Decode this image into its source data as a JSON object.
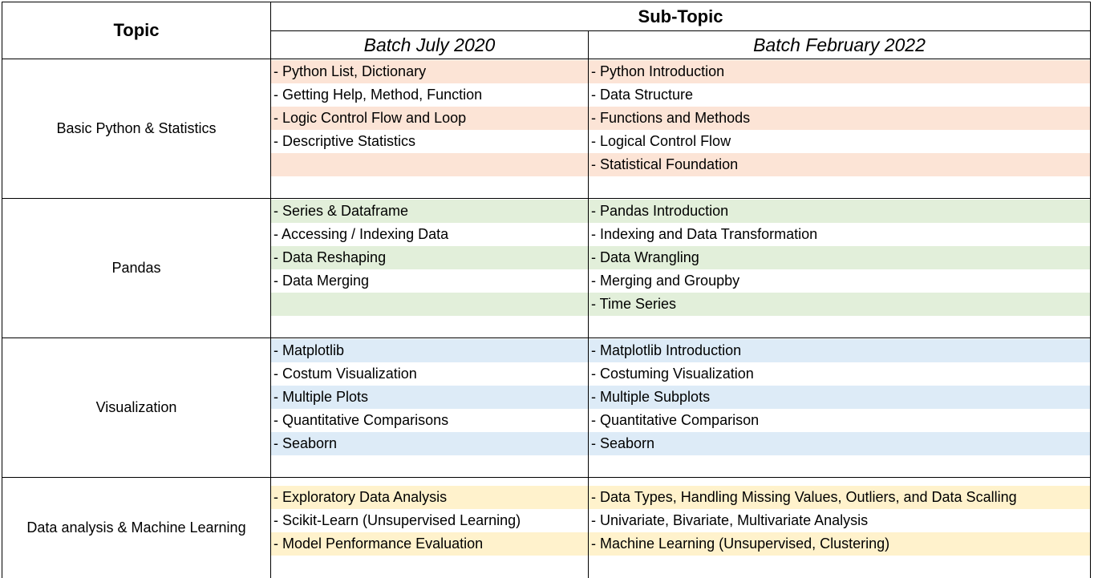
{
  "header": {
    "topic_label": "Topic",
    "subtopic_label": "Sub-Topic",
    "batches": [
      "Batch July 2020",
      "Batch February 2022"
    ]
  },
  "colors": {
    "basic_python": "#fce4d6",
    "pandas": "#e2efda",
    "visualization": "#ddebf7",
    "data_analysis": "#fff2cc",
    "border": "#000000"
  },
  "sections": [
    {
      "topic": "Basic Python & Statistics",
      "color_key": "basic_python",
      "july_2020": [
        "- Python List, Dictionary",
        "- Getting Help, Method, Function",
        "- Logic Control Flow and Loop",
        "- Descriptive Statistics",
        ""
      ],
      "feb_2022": [
        "- Python Introduction",
        "- Data Structure",
        "- Functions and Methods",
        "- Logical Control Flow",
        "- Statistical Foundation"
      ]
    },
    {
      "topic": "Pandas",
      "color_key": "pandas",
      "july_2020": [
        "- Series & Dataframe",
        "- Accessing / Indexing Data",
        "- Data Reshaping",
        "- Data Merging",
        ""
      ],
      "feb_2022": [
        "- Pandas Introduction",
        "- Indexing and Data Transformation",
        "- Data Wrangling",
        "- Merging and Groupby",
        "- Time Series"
      ]
    },
    {
      "topic": "Visualization",
      "color_key": "visualization",
      "july_2020": [
        "- Matplotlib",
        "- Costum Visualization",
        "- Multiple Plots",
        "- Quantitative Comparisons",
        "- Seaborn"
      ],
      "feb_2022": [
        "- Matplotlib Introduction",
        "- Costuming Visualization",
        "- Multiple Subplots",
        "- Quantitative Comparison",
        "- Seaborn"
      ]
    },
    {
      "topic": "Data analysis & Machine Learning",
      "color_key": "data_analysis",
      "july_2020": [
        "- Exploratory Data Analysis",
        "- Scikit-Learn (Unsupervised Learning)",
        "- Model Penformance Evaluation"
      ],
      "feb_2022": [
        "- Data Types, Handling Missing Values, Outliers, and Data Scalling",
        "- Univariate, Bivariate, Multivariate Analysis",
        "- Machine Learning (Unsupervised, Clustering)"
      ]
    }
  ]
}
